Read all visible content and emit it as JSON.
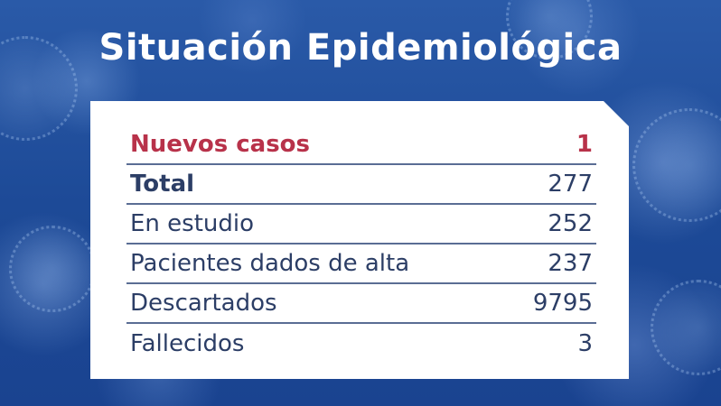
{
  "title": "Situación Epidemiológica",
  "colors": {
    "background": "#1f4f9e",
    "card": "#ffffff",
    "highlight_text": "#b8324a",
    "body_text": "#2c3e66",
    "divider": "#5a6d94"
  },
  "stats": [
    {
      "label": "Nuevos casos",
      "value": "1"
    },
    {
      "label": "Total",
      "value": "277"
    },
    {
      "label": "En estudio",
      "value": "252"
    },
    {
      "label": "Pacientes dados de alta",
      "value": "237"
    },
    {
      "label": "Descartados",
      "value": "9795"
    },
    {
      "label": "Fallecidos",
      "value": "3"
    }
  ]
}
